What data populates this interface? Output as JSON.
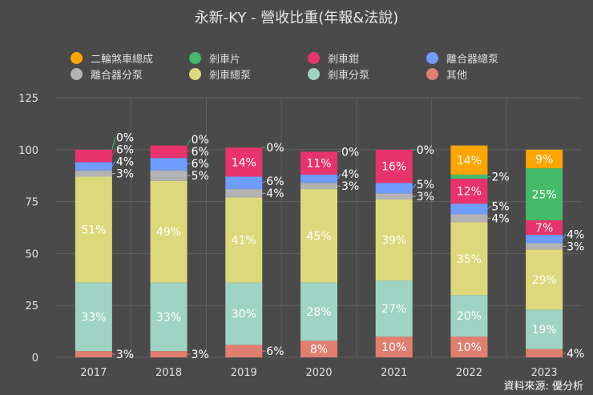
{
  "chart_data": {
    "type": "bar",
    "stacked": true,
    "title": "永新-KY - 營收比重(年報&法說)",
    "categories": [
      "2017",
      "2018",
      "2019",
      "2020",
      "2021",
      "2022",
      "2023"
    ],
    "ylim": [
      0,
      125
    ],
    "yticks": [
      "0",
      "25",
      "50",
      "75",
      "100",
      "125"
    ],
    "grid": true,
    "legend_position": "top",
    "unit": "%",
    "series": [
      {
        "name": "其他",
        "color": "#E07F70",
        "values": [
          3,
          3,
          6,
          8,
          10,
          10,
          4
        ]
      },
      {
        "name": "剎車分泵",
        "color": "#9FD3C3",
        "values": [
          33,
          33,
          30,
          28,
          27,
          20,
          19
        ]
      },
      {
        "name": "剎車總泵",
        "color": "#DDD87C",
        "values": [
          51,
          49,
          41,
          45,
          39,
          35,
          29
        ]
      },
      {
        "name": "離合器分泵",
        "color": "#B3B3B3",
        "values": [
          3,
          5,
          4,
          3,
          3,
          4,
          3
        ]
      },
      {
        "name": "離合器總泵",
        "color": "#6E9CFF",
        "values": [
          4,
          6,
          6,
          4,
          5,
          5,
          4
        ]
      },
      {
        "name": "剎車鉗",
        "color": "#E8336C",
        "values": [
          6,
          6,
          14,
          11,
          16,
          12,
          7
        ]
      },
      {
        "name": "剎車片",
        "color": "#44BB6A",
        "values": [
          0,
          0,
          0,
          0,
          0,
          2,
          25
        ]
      },
      {
        "name": "二輪煞車總成",
        "color": "#FFA500",
        "values": [
          null,
          null,
          null,
          null,
          null,
          14,
          9
        ]
      }
    ],
    "legend_order": [
      7,
      6,
      5,
      4,
      3,
      2,
      1,
      0
    ],
    "source": "資料來源: 優分析"
  }
}
